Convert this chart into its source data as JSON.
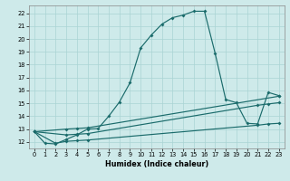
{
  "xlabel": "Humidex (Indice chaleur)",
  "bg_color": "#ceeaea",
  "grid_color": "#aad4d4",
  "line_color": "#1a6b6b",
  "xlim": [
    -0.5,
    23.5
  ],
  "ylim": [
    11.5,
    22.6
  ],
  "xticks": [
    0,
    1,
    2,
    3,
    4,
    5,
    6,
    7,
    8,
    9,
    10,
    11,
    12,
    13,
    14,
    15,
    16,
    17,
    18,
    19,
    20,
    21,
    22,
    23
  ],
  "yticks": [
    12,
    13,
    14,
    15,
    16,
    17,
    18,
    19,
    20,
    21,
    22
  ],
  "main_x": [
    0,
    1,
    2,
    3,
    4,
    5,
    6,
    7,
    8,
    9,
    10,
    11,
    12,
    13,
    14,
    15,
    16,
    17,
    18,
    19,
    20,
    21,
    22,
    23
  ],
  "main_y": [
    12.8,
    11.9,
    11.85,
    12.2,
    12.55,
    13.0,
    13.05,
    14.0,
    15.1,
    16.6,
    19.3,
    20.3,
    21.15,
    21.65,
    21.85,
    22.15,
    22.15,
    18.9,
    15.3,
    15.05,
    13.45,
    13.4,
    15.85,
    15.6
  ],
  "line1_x": [
    0,
    3,
    4,
    5,
    23
  ],
  "line1_y": [
    12.8,
    13.0,
    13.05,
    13.1,
    15.55
  ],
  "line2_x": [
    0,
    3,
    4,
    5,
    21,
    22,
    23
  ],
  "line2_y": [
    12.8,
    12.55,
    12.6,
    12.65,
    14.85,
    14.95,
    15.05
  ],
  "line3_x": [
    0,
    2,
    3,
    4,
    5,
    21,
    22,
    23
  ],
  "line3_y": [
    12.8,
    11.9,
    12.05,
    12.1,
    12.15,
    13.3,
    13.4,
    13.45
  ]
}
